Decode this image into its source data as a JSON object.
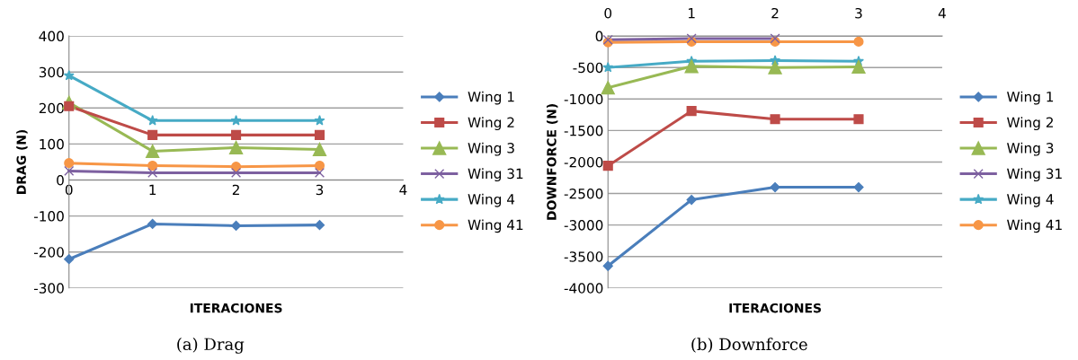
{
  "chart_data": [
    {
      "type": "line",
      "xlabel": "ITERACIONES",
      "ylabel": "DRAG (N)",
      "x": [
        0,
        1,
        2,
        3
      ],
      "xlim": [
        0,
        4
      ],
      "xticks": [
        0,
        1,
        2,
        3,
        4
      ],
      "ylim": [
        -300,
        400
      ],
      "yticks": [
        -300,
        -200,
        -100,
        0,
        100,
        200,
        300,
        400
      ],
      "grid": "y",
      "legend": "right",
      "annotations": [
        "(a) Drag"
      ],
      "series": [
        {
          "name": "Wing 1",
          "color": "#4a7ebb",
          "marker": "diamond",
          "values": [
            -220,
            -122,
            -127,
            -125
          ]
        },
        {
          "name": "Wing 2",
          "color": "#be4b48",
          "marker": "square",
          "values": [
            205,
            125,
            125,
            125
          ]
        },
        {
          "name": "Wing 3",
          "color": "#98b954",
          "marker": "triangle",
          "values": [
            215,
            80,
            90,
            85
          ]
        },
        {
          "name": "Wing 31",
          "color": "#7d60a0",
          "marker": "cross",
          "values": [
            25,
            20,
            20,
            20
          ]
        },
        {
          "name": "Wing 4",
          "color": "#46aac5",
          "marker": "star",
          "values": [
            290,
            165,
            165,
            165
          ]
        },
        {
          "name": "Wing 41",
          "color": "#f79646",
          "marker": "circle",
          "values": [
            47,
            40,
            37,
            40
          ]
        }
      ]
    },
    {
      "type": "line",
      "xlabel": "ITERACIONES",
      "ylabel": "DOWNFORCE (N)",
      "x": [
        0,
        1,
        2,
        3
      ],
      "xlim": [
        0,
        4
      ],
      "xticks": [
        0,
        1,
        2,
        3,
        4
      ],
      "ylim": [
        -4000,
        0
      ],
      "yticks": [
        -4000,
        -3500,
        -3000,
        -2500,
        -2000,
        -1500,
        -1000,
        -500,
        0
      ],
      "grid": "y",
      "legend": "right",
      "annotations": [
        "(b) Downforce"
      ],
      "series": [
        {
          "name": "Wing 1",
          "color": "#4a7ebb",
          "marker": "diamond",
          "values": [
            -3650,
            -2600,
            -2400,
            -2400
          ]
        },
        {
          "name": "Wing 2",
          "color": "#be4b48",
          "marker": "square",
          "values": [
            -2060,
            -1190,
            -1320,
            -1320
          ]
        },
        {
          "name": "Wing 3",
          "color": "#98b954",
          "marker": "triangle",
          "values": [
            -820,
            -480,
            -500,
            -490
          ]
        },
        {
          "name": "Wing 31",
          "color": "#7d60a0",
          "marker": "cross",
          "values": [
            -60,
            -40,
            -40,
            null
          ]
        },
        {
          "name": "Wing 4",
          "color": "#46aac5",
          "marker": "star",
          "values": [
            -500,
            -400,
            -390,
            -400
          ]
        },
        {
          "name": "Wing 41",
          "color": "#f79646",
          "marker": "circle",
          "values": [
            -100,
            -90,
            -90,
            -90
          ]
        }
      ]
    }
  ]
}
